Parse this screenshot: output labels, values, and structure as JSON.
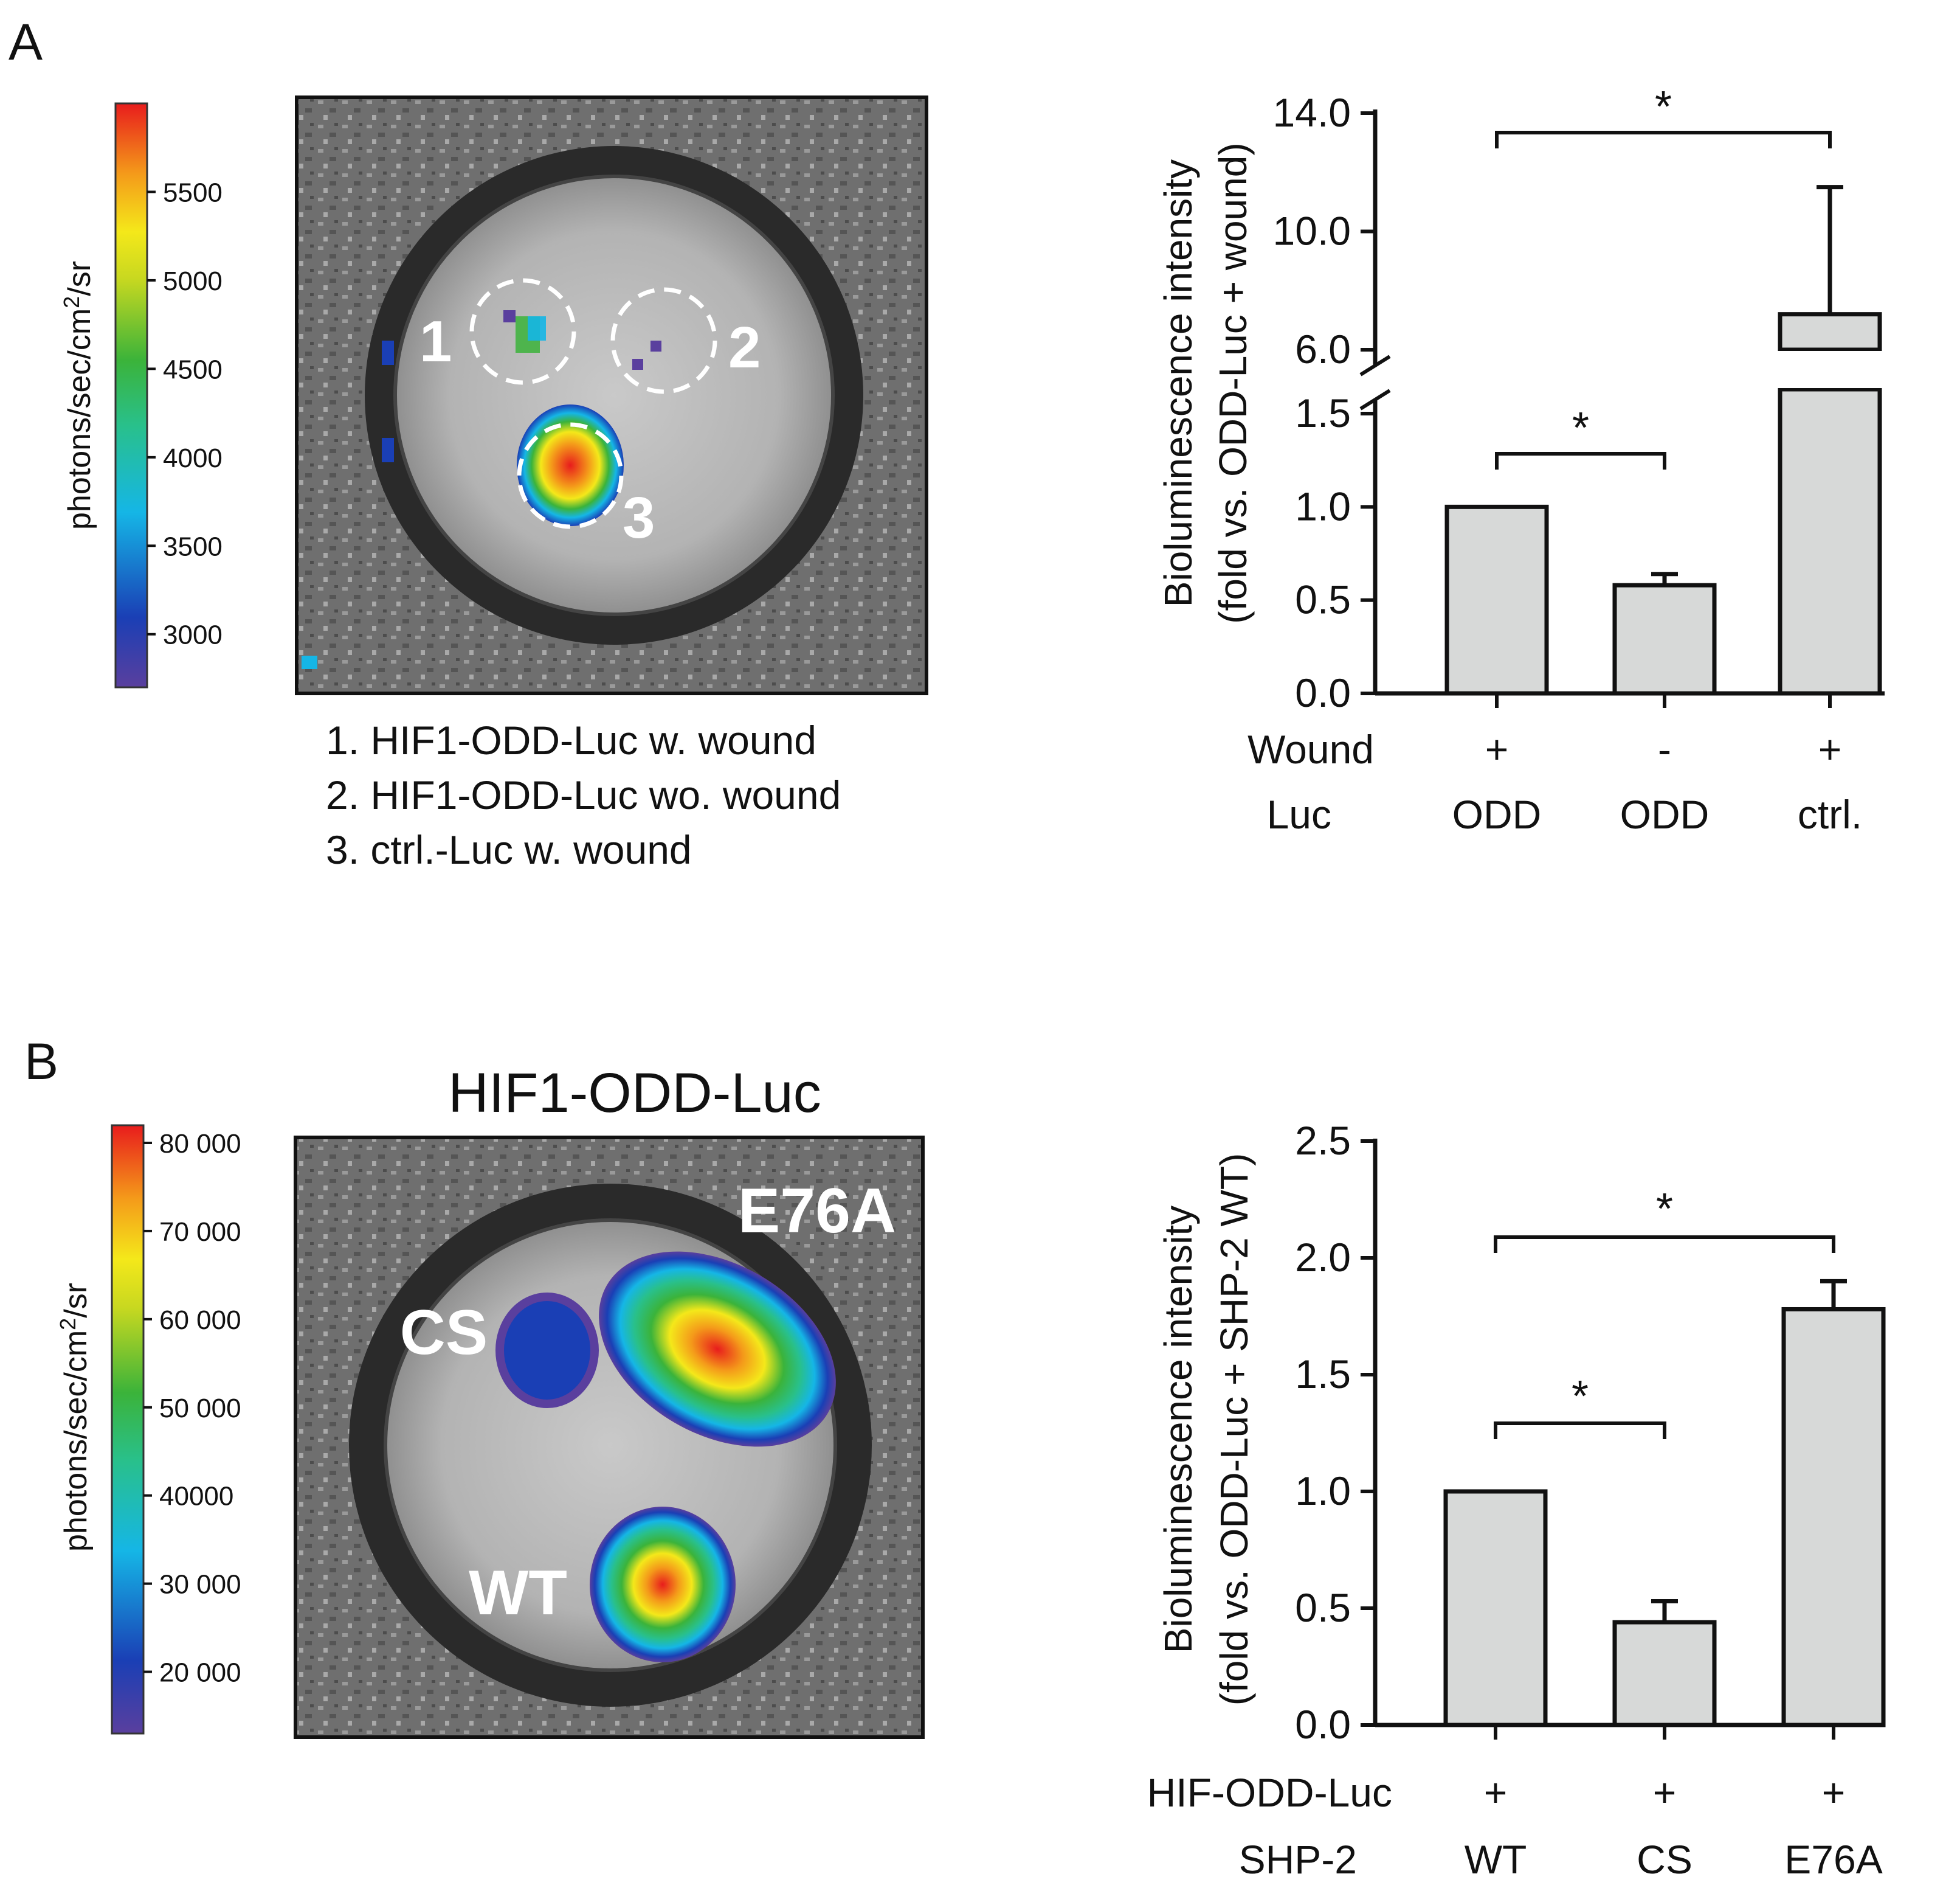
{
  "panel_a": {
    "letter": "A",
    "colorbar": {
      "label": "photons/sec/cm2/sr",
      "ticks": [
        "5500",
        "5000",
        "4500",
        "4000",
        "3500",
        "3000"
      ],
      "range": [
        2700,
        6000
      ]
    },
    "image_labels": [
      "1",
      "2",
      "3"
    ],
    "legend": [
      "1. HIF1-ODD-Luc w. wound",
      "2. HIF1-ODD-Luc wo. wound",
      "3. ctrl.-Luc w. wound"
    ]
  },
  "panel_b": {
    "letter": "B",
    "image_title": "HIF1-ODD-Luc",
    "colorbar": {
      "label": "photons/sec/cm2/sr",
      "ticks": [
        "80 000",
        "70 000",
        "60 000",
        "50 000",
        "40000",
        "30 000",
        "20 000"
      ],
      "range": [
        13000,
        82000
      ]
    },
    "image_labels": [
      "E76A",
      "CS",
      "WT"
    ]
  },
  "chart_data": [
    {
      "type": "bar",
      "panel": "A",
      "ylabel": "Bioluminescence intensity",
      "ylabel2": "(fold vs. ODD-Luc + wound)",
      "axis_break": true,
      "lower_ylim": [
        0,
        1.5
      ],
      "upper_ylim": [
        6,
        14
      ],
      "yticks_lower": [
        "0.0",
        "0.5",
        "1.0",
        "1.5"
      ],
      "yticks_upper": [
        "6.0",
        "10.0",
        "14.0"
      ],
      "row_labels": [
        "Wound",
        "Luc"
      ],
      "rows": [
        [
          "+",
          "-",
          "+"
        ],
        [
          "ODD",
          "ODD",
          "ctrl."
        ]
      ],
      "values": [
        1.0,
        0.58,
        7.2
      ],
      "errors": [
        0,
        0.06,
        4.3
      ],
      "significance": [
        {
          "from": 0,
          "to": 2,
          "label": "*"
        },
        {
          "from": 0,
          "to": 1,
          "label": "*"
        }
      ]
    },
    {
      "type": "bar",
      "panel": "B",
      "ylabel": "Bioluminescence intensity",
      "ylabel2": "(fold vs. ODD-Luc + SHP-2 WT)",
      "ylim": [
        0,
        2.5
      ],
      "yticks": [
        "0.0",
        "0.5",
        "1.0",
        "1.5",
        "2.0",
        "2.5"
      ],
      "row_labels": [
        "HIF-ODD-Luc",
        "SHP-2"
      ],
      "rows": [
        [
          "+",
          "+",
          "+"
        ],
        [
          "WT",
          "CS",
          "E76A"
        ]
      ],
      "values": [
        1.0,
        0.44,
        1.78
      ],
      "errors": [
        0,
        0.09,
        0.12
      ],
      "significance": [
        {
          "from": 0,
          "to": 2,
          "label": "*"
        },
        {
          "from": 0,
          "to": 1,
          "label": "*"
        }
      ]
    }
  ]
}
